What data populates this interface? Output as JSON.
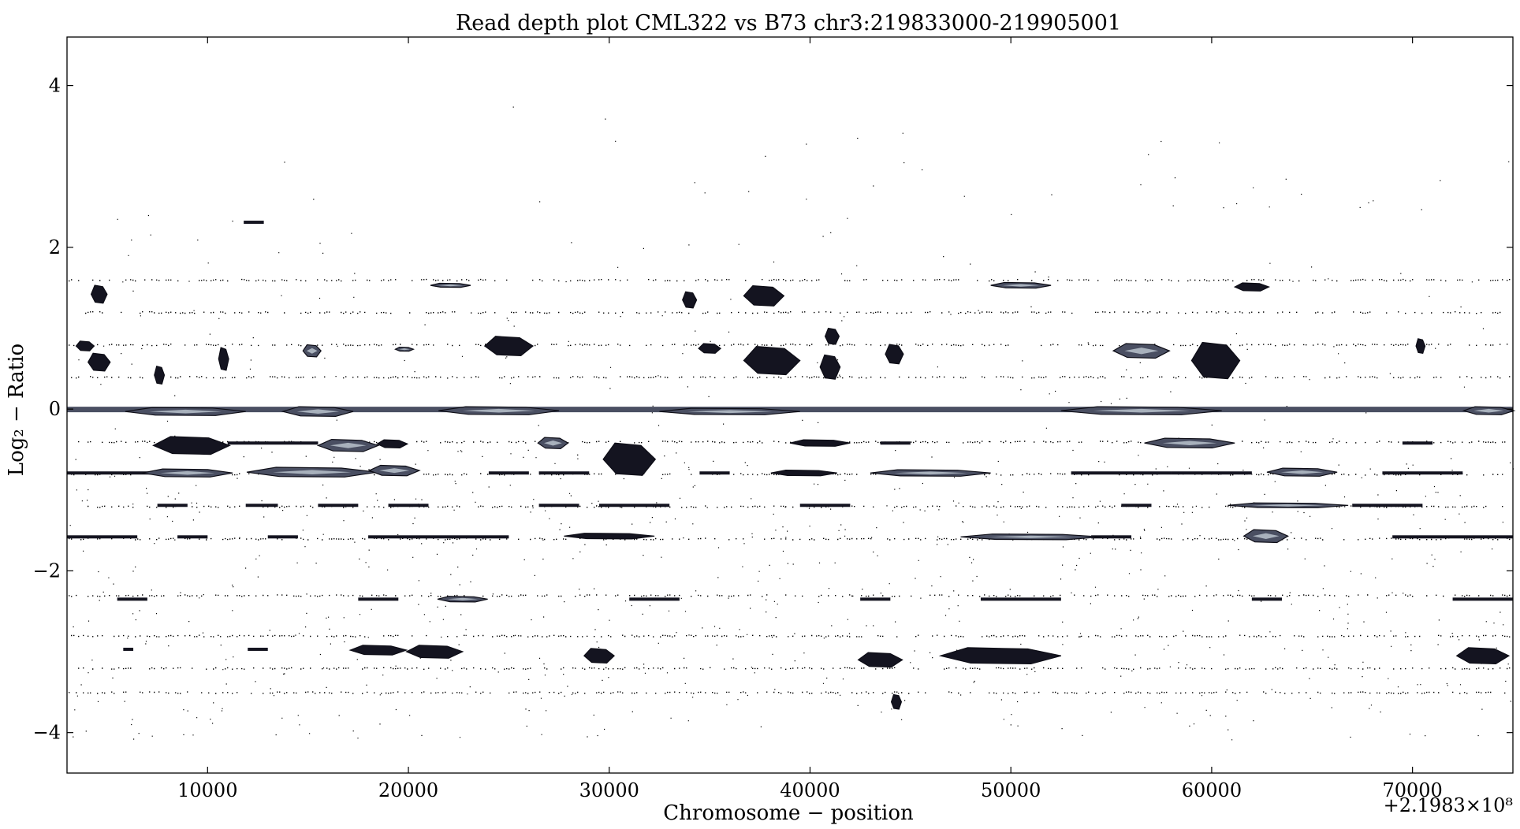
{
  "chart_data": {
    "type": "heatmap",
    "title": "Read depth plot CML322 vs B73 chr3:219833000-219905001",
    "xlabel": "Chromosome − position",
    "ylabel": "Log₂ − Ratio",
    "x_offset_label": "+2.1983×10⁸",
    "xlim": [
      3000,
      75000
    ],
    "ylim": [
      -4.5,
      4.6
    ],
    "x_ticks": [
      10000,
      20000,
      30000,
      40000,
      50000,
      60000,
      70000
    ],
    "x_tick_labels": [
      "10000",
      "20000",
      "30000",
      "40000",
      "50000",
      "60000",
      "70000"
    ],
    "y_ticks": [
      4,
      2,
      0,
      -2,
      -4
    ],
    "y_tick_labels": [
      "4",
      "2",
      "0",
      "−2",
      "−4"
    ],
    "grid": false,
    "colors": {
      "dense": "#141420",
      "mid": "#4a4f62",
      "light": "#b8c2cc",
      "dot": "#000000"
    },
    "dot_rows": [
      1.6,
      1.2,
      0.8,
      0.4,
      -0.4,
      -0.8,
      -1.2,
      -1.6,
      -2.3,
      -2.8,
      -3.2,
      -3.5
    ],
    "blobs": [
      {
        "x": 3900,
        "y": 0.78,
        "w": 900,
        "h": 0.12,
        "tone": "dense"
      },
      {
        "x": 4600,
        "y": 1.42,
        "w": 800,
        "h": 0.22,
        "tone": "dense"
      },
      {
        "x": 4600,
        "y": 0.58,
        "w": 1100,
        "h": 0.22,
        "tone": "dense"
      },
      {
        "x": 7600,
        "y": 0.42,
        "w": 500,
        "h": 0.22,
        "tone": "dense"
      },
      {
        "x": 10800,
        "y": 0.62,
        "w": 500,
        "h": 0.28,
        "tone": "dense"
      },
      {
        "x": 15200,
        "y": 0.72,
        "w": 900,
        "h": 0.15,
        "tone": "mid"
      },
      {
        "x": 19800,
        "y": 0.74,
        "w": 900,
        "h": 0.05,
        "tone": "mid"
      },
      {
        "x": 22100,
        "y": 1.53,
        "w": 2000,
        "h": 0.05,
        "tone": "mid"
      },
      {
        "x": 25000,
        "y": 0.78,
        "w": 2400,
        "h": 0.24,
        "tone": "dense"
      },
      {
        "x": 34000,
        "y": 1.35,
        "w": 700,
        "h": 0.2,
        "tone": "dense"
      },
      {
        "x": 35000,
        "y": 0.75,
        "w": 1100,
        "h": 0.12,
        "tone": "dense"
      },
      {
        "x": 37700,
        "y": 1.4,
        "w": 2000,
        "h": 0.25,
        "tone": "dense"
      },
      {
        "x": 38100,
        "y": 0.6,
        "w": 2800,
        "h": 0.35,
        "tone": "dense"
      },
      {
        "x": 41100,
        "y": 0.9,
        "w": 700,
        "h": 0.2,
        "tone": "dense"
      },
      {
        "x": 41000,
        "y": 0.52,
        "w": 1000,
        "h": 0.3,
        "tone": "dense"
      },
      {
        "x": 44200,
        "y": 0.68,
        "w": 900,
        "h": 0.24,
        "tone": "dense"
      },
      {
        "x": 50500,
        "y": 1.53,
        "w": 3000,
        "h": 0.07,
        "tone": "mid"
      },
      {
        "x": 56500,
        "y": 0.72,
        "w": 2800,
        "h": 0.18,
        "tone": "mid"
      },
      {
        "x": 60200,
        "y": 0.6,
        "w": 2400,
        "h": 0.45,
        "tone": "dense"
      },
      {
        "x": 62000,
        "y": 1.51,
        "w": 1700,
        "h": 0.1,
        "tone": "dense"
      },
      {
        "x": 70400,
        "y": 0.78,
        "w": 450,
        "h": 0.18,
        "tone": "dense"
      },
      {
        "x": 8900,
        "y": -0.03,
        "w": 6000,
        "h": 0.1,
        "tone": "light"
      },
      {
        "x": 15500,
        "y": -0.03,
        "w": 3500,
        "h": 0.12,
        "tone": "light"
      },
      {
        "x": 24500,
        "y": -0.02,
        "w": 6000,
        "h": 0.1,
        "tone": "light"
      },
      {
        "x": 36000,
        "y": -0.03,
        "w": 7000,
        "h": 0.08,
        "tone": "light"
      },
      {
        "x": 56500,
        "y": -0.02,
        "w": 8000,
        "h": 0.1,
        "tone": "light"
      },
      {
        "x": 73800,
        "y": -0.02,
        "w": 2500,
        "h": 0.1,
        "tone": "light"
      },
      {
        "x": 9200,
        "y": -0.45,
        "w": 3800,
        "h": 0.22,
        "tone": "dense"
      },
      {
        "x": 17000,
        "y": -0.45,
        "w": 3000,
        "h": 0.15,
        "tone": "mid"
      },
      {
        "x": 19200,
        "y": -0.43,
        "w": 1500,
        "h": 0.1,
        "tone": "dense"
      },
      {
        "x": 27200,
        "y": -0.42,
        "w": 1500,
        "h": 0.14,
        "tone": "mid"
      },
      {
        "x": 31000,
        "y": -0.62,
        "w": 2600,
        "h": 0.4,
        "tone": "dense"
      },
      {
        "x": 40500,
        "y": -0.42,
        "w": 3000,
        "h": 0.08,
        "tone": "dense"
      },
      {
        "x": 58900,
        "y": -0.42,
        "w": 4500,
        "h": 0.12,
        "tone": "mid"
      },
      {
        "x": 9000,
        "y": -0.79,
        "w": 4500,
        "h": 0.1,
        "tone": "mid"
      },
      {
        "x": 15200,
        "y": -0.78,
        "w": 6500,
        "h": 0.12,
        "tone": "mid"
      },
      {
        "x": 19300,
        "y": -0.76,
        "w": 2500,
        "h": 0.13,
        "tone": "mid"
      },
      {
        "x": 39700,
        "y": -0.79,
        "w": 3300,
        "h": 0.07,
        "tone": "dense"
      },
      {
        "x": 46000,
        "y": -0.79,
        "w": 6000,
        "h": 0.08,
        "tone": "mid"
      },
      {
        "x": 64500,
        "y": -0.78,
        "w": 3500,
        "h": 0.1,
        "tone": "mid"
      },
      {
        "x": 63800,
        "y": -1.19,
        "w": 6000,
        "h": 0.06,
        "tone": "mid"
      },
      {
        "x": 51000,
        "y": -1.58,
        "w": 7000,
        "h": 0.07,
        "tone": "mid"
      },
      {
        "x": 62700,
        "y": -1.57,
        "w": 2200,
        "h": 0.16,
        "tone": "mid"
      },
      {
        "x": 30000,
        "y": -1.57,
        "w": 4500,
        "h": 0.07,
        "tone": "dense"
      },
      {
        "x": 22700,
        "y": -2.35,
        "w": 2500,
        "h": 0.07,
        "tone": "mid"
      },
      {
        "x": 18500,
        "y": -2.98,
        "w": 2800,
        "h": 0.12,
        "tone": "dense"
      },
      {
        "x": 21300,
        "y": -3.0,
        "w": 2800,
        "h": 0.16,
        "tone": "dense"
      },
      {
        "x": 29500,
        "y": -3.05,
        "w": 1500,
        "h": 0.18,
        "tone": "dense"
      },
      {
        "x": 43500,
        "y": -3.1,
        "w": 2200,
        "h": 0.18,
        "tone": "dense"
      },
      {
        "x": 49500,
        "y": -3.05,
        "w": 6000,
        "h": 0.2,
        "tone": "dense"
      },
      {
        "x": 44300,
        "y": -3.62,
        "w": 500,
        "h": 0.18,
        "tone": "dense"
      },
      {
        "x": 73500,
        "y": -3.05,
        "w": 2600,
        "h": 0.2,
        "tone": "dense"
      }
    ],
    "thin_bars": [
      {
        "y": -1.19,
        "x0": 7500,
        "x1": 9000
      },
      {
        "y": -1.19,
        "x0": 11900,
        "x1": 13500
      },
      {
        "y": -1.19,
        "x0": 15500,
        "x1": 17500
      },
      {
        "y": -1.19,
        "x0": 19000,
        "x1": 21000
      },
      {
        "y": -1.19,
        "x0": 26500,
        "x1": 28500
      },
      {
        "y": -1.19,
        "x0": 29500,
        "x1": 33000
      },
      {
        "y": -1.19,
        "x0": 39500,
        "x1": 42000
      },
      {
        "y": -1.19,
        "x0": 55500,
        "x1": 57000
      },
      {
        "y": -1.19,
        "x0": 67000,
        "x1": 70500
      },
      {
        "y": -1.58,
        "x0": 3000,
        "x1": 6500
      },
      {
        "y": -1.58,
        "x0": 8500,
        "x1": 10000
      },
      {
        "y": -1.58,
        "x0": 13000,
        "x1": 14500
      },
      {
        "y": -1.58,
        "x0": 18000,
        "x1": 25000
      },
      {
        "y": -1.58,
        "x0": 54000,
        "x1": 56000
      },
      {
        "y": -1.58,
        "x0": 69000,
        "x1": 75000
      },
      {
        "y": -2.35,
        "x0": 5500,
        "x1": 7000
      },
      {
        "y": -2.35,
        "x0": 17500,
        "x1": 19500
      },
      {
        "y": -2.35,
        "x0": 31000,
        "x1": 33500
      },
      {
        "y": -2.35,
        "x0": 42500,
        "x1": 44000
      },
      {
        "y": -2.35,
        "x0": 48500,
        "x1": 52500
      },
      {
        "y": -2.35,
        "x0": 62000,
        "x1": 63500
      },
      {
        "y": -2.35,
        "x0": 72000,
        "x1": 75000
      },
      {
        "y": -0.79,
        "x0": 3000,
        "x1": 8000
      },
      {
        "y": -0.79,
        "x0": 24000,
        "x1": 26000
      },
      {
        "y": -0.79,
        "x0": 26500,
        "x1": 29000
      },
      {
        "y": -0.79,
        "x0": 34500,
        "x1": 36000
      },
      {
        "y": -0.79,
        "x0": 53000,
        "x1": 58000
      },
      {
        "y": -0.79,
        "x0": 58000,
        "x1": 62000
      },
      {
        "y": -0.79,
        "x0": 68500,
        "x1": 72500
      },
      {
        "y": -0.42,
        "x0": 11000,
        "x1": 15500
      },
      {
        "y": -0.42,
        "x0": 43500,
        "x1": 45000
      },
      {
        "y": -0.42,
        "x0": 69500,
        "x1": 71000
      },
      {
        "y": 2.31,
        "x0": 11800,
        "x1": 12800
      },
      {
        "y": -2.97,
        "x0": 5800,
        "x1": 6300
      },
      {
        "y": -2.97,
        "x0": 12000,
        "x1": 13000
      }
    ]
  }
}
